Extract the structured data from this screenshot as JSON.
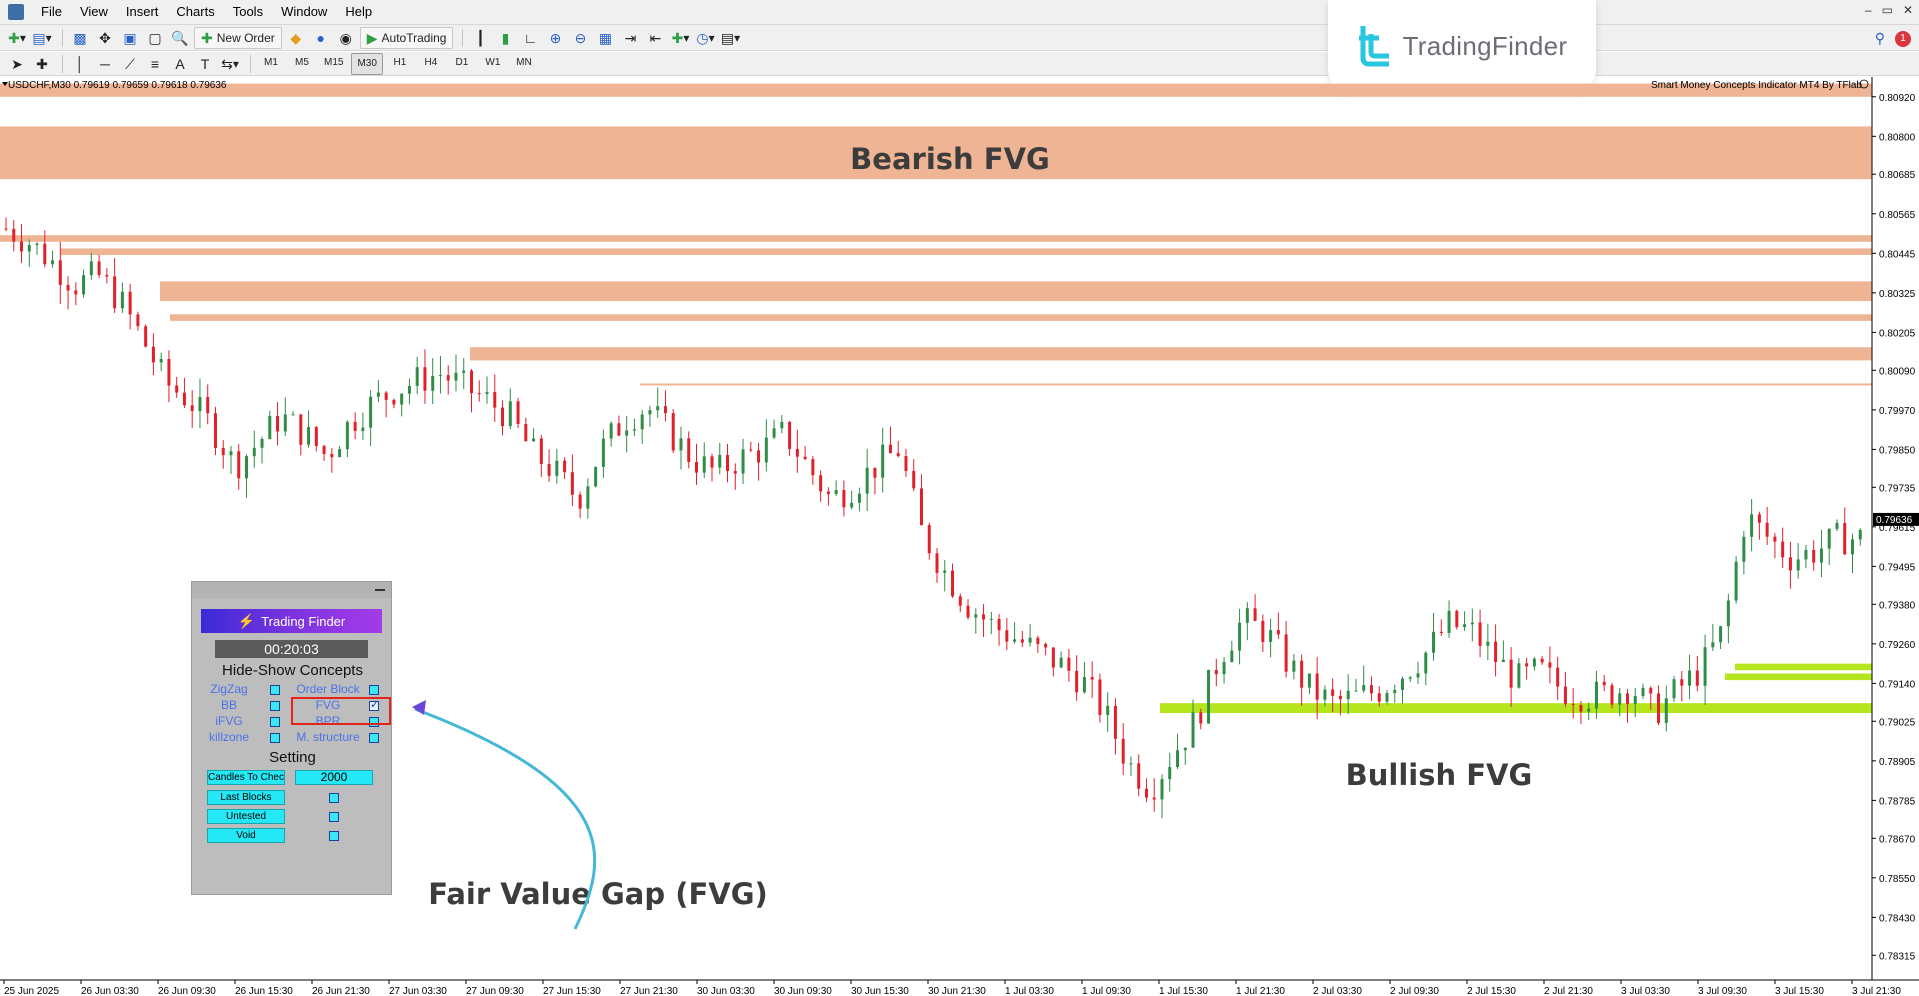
{
  "menu": {
    "items": [
      "File",
      "View",
      "Insert",
      "Charts",
      "Tools",
      "Window",
      "Help"
    ]
  },
  "toolbar": {
    "new_order_label": "New Order",
    "autotrading_label": "AutoTrading",
    "timeframes": [
      "M1",
      "M5",
      "M15",
      "M30",
      "H1",
      "H4",
      "D1",
      "W1",
      "MN"
    ],
    "active_timeframe": "M30"
  },
  "brand": {
    "logo_text": "TradingFinder",
    "notification_count": "1"
  },
  "chart": {
    "symbol_info": "USDCHF,M30  0.79619 0.79659 0.79618 0.79636",
    "indicator_title": "Smart Money Concepts Indicator MT4 By TFlab",
    "current_price": "0.79636",
    "price_ticks": [
      "0.80920",
      "0.80800",
      "0.80685",
      "0.80565",
      "0.80445",
      "0.80325",
      "0.80205",
      "0.80090",
      "0.79970",
      "0.79850",
      "0.79735",
      "0.79615",
      "0.79495",
      "0.79380",
      "0.79260",
      "0.79140",
      "0.79025",
      "0.78905",
      "0.78785",
      "0.78670",
      "0.78550",
      "0.78430",
      "0.78315"
    ],
    "time_ticks": [
      "25 Jun 2025",
      "26 Jun 03:30",
      "26 Jun 09:30",
      "26 Jun 15:30",
      "26 Jun 21:30",
      "27 Jun 03:30",
      "27 Jun 09:30",
      "27 Jun 15:30",
      "27 Jun 21:30",
      "30 Jun 03:30",
      "30 Jun 09:30",
      "30 Jun 15:30",
      "30 Jun 21:30",
      "1 Jul 03:30",
      "1 Jul 09:30",
      "1 Jul 15:30",
      "1 Jul 21:30",
      "2 Jul 03:30",
      "2 Jul 09:30",
      "2 Jul 15:30",
      "2 Jul 21:30",
      "3 Jul 03:30",
      "3 Jul 09:30",
      "3 Jul 15:30",
      "3 Jul 21:30"
    ],
    "colors": {
      "bearish_fvg": "#efb494",
      "bullish_fvg": "#b5e51d",
      "bull_candle": "#2f8d47",
      "bear_candle": "#e0202a"
    },
    "annotations": {
      "bearish": "Bearish FVG",
      "bullish": "Bullish FVG",
      "fvg_caption": "Fair Value Gap (FVG)"
    }
  },
  "chart_data": {
    "type": "candlestick",
    "symbol": "USDCHF",
    "timeframe": "M30",
    "close_path": [
      0.8052,
      0.8048,
      0.8042,
      0.8035,
      0.8038,
      0.803,
      0.8018,
      0.8005,
      0.8,
      0.7992,
      0.798,
      0.7987,
      0.7995,
      0.799,
      0.7983,
      0.7993,
      0.7999,
      0.8003,
      0.8006,
      0.8008,
      0.8004,
      0.8,
      0.7995,
      0.7984,
      0.7978,
      0.797,
      0.7985,
      0.7994,
      0.7998,
      0.799,
      0.7982,
      0.7978,
      0.7982,
      0.7985,
      0.799,
      0.798,
      0.797,
      0.7974,
      0.798,
      0.7985,
      0.796,
      0.7948,
      0.7938,
      0.7932,
      0.7928,
      0.7924,
      0.792,
      0.7915,
      0.7905,
      0.789,
      0.7882,
      0.7893,
      0.7903,
      0.7922,
      0.7933,
      0.793,
      0.792,
      0.7912,
      0.7908,
      0.791,
      0.7912,
      0.7917,
      0.7923,
      0.7932,
      0.793,
      0.7922,
      0.7915,
      0.7918,
      0.7912,
      0.791,
      0.7911,
      0.7913,
      0.7905,
      0.7912,
      0.7918,
      0.793,
      0.7965,
      0.7958,
      0.7952,
      0.7954,
      0.7958,
      0.7958
    ],
    "bearish_fvg_zones": [
      [
        0.8096,
        0.8092
      ],
      [
        0.8083,
        0.8067
      ],
      [
        0.805,
        0.8048
      ],
      [
        0.8046,
        0.8044
      ],
      [
        0.8036,
        0.803
      ],
      [
        0.8026,
        0.8024
      ],
      [
        0.8016,
        0.8012
      ],
      [
        0.8005,
        0.8005
      ]
    ],
    "bullish_fvg_zones": [
      [
        0.792,
        0.7918
      ],
      [
        0.7917,
        0.7915
      ],
      [
        0.7908,
        0.7905
      ]
    ]
  },
  "panel": {
    "logo_text": "Trading Finder",
    "timer": "00:20:03",
    "hide_show_title": "Hide-Show Concepts",
    "concepts": [
      {
        "left": "ZigZag",
        "left_checked": false,
        "right": "Order Block",
        "right_checked": false
      },
      {
        "left": "BB",
        "left_checked": false,
        "right": "FVG",
        "right_checked": true
      },
      {
        "left": "iFVG",
        "left_checked": false,
        "right": "BPR",
        "right_checked": false
      },
      {
        "left": "killzone",
        "left_checked": false,
        "right": "M. structure",
        "right_checked": false
      }
    ],
    "setting_title": "Setting",
    "candles_label": "Candles To Check",
    "candles_value": "2000",
    "last_blocks_label": "Last Blocks",
    "untested_label": "Untested",
    "void_label": "Void"
  }
}
